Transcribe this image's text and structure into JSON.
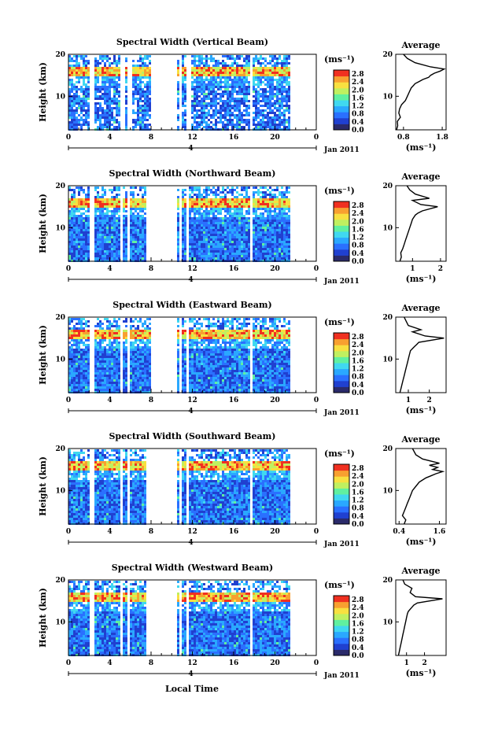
{
  "figure": {
    "xlabel": "Local Time",
    "date_label": "Jan 2011",
    "day_label": "4",
    "ylabel": "Height (km)",
    "avg_title": "Average",
    "unit_label": "(ms⁻¹)"
  },
  "colors": {
    "scale": [
      "#2a2a6a",
      "#2040d0",
      "#2a70ff",
      "#2aa8ff",
      "#40d8f0",
      "#60f0a0",
      "#c0f060",
      "#f8e040",
      "#f8a030",
      "#f03020"
    ],
    "profile": "#000000",
    "frame": "#000000"
  },
  "chart_data": [
    {
      "type": "heatmap",
      "title": "Spectral Width (Vertical Beam)",
      "x_ticks": [
        "0",
        "4",
        "8",
        "12",
        "16",
        "20",
        "0"
      ],
      "y_ticks": [
        "20",
        "10"
      ],
      "xlim": [
        0,
        24
      ],
      "ylim": [
        2,
        20
      ],
      "colorbar_ticks": [
        "2.8",
        "2.4",
        "2.0",
        "1.6",
        "1.2",
        "0.8",
        "0.4",
        "0.0"
      ],
      "data_gaps_hours": [
        [
          2.0,
          2.5
        ],
        [
          5.0,
          5.3
        ],
        [
          5.7,
          6.0
        ],
        [
          8.0,
          10.3
        ],
        [
          10.6,
          10.9
        ],
        [
          11.3,
          11.7
        ],
        [
          17.5,
          17.8
        ]
      ],
      "data_end_hour": 21.3,
      "high_width_layer_km": [
        15,
        17
      ],
      "avg_profile": {
        "xticks": [
          "0.8",
          "1.8"
        ],
        "xlim": [
          0.6,
          1.9
        ],
        "ylim": [
          2,
          20
        ],
        "x": [
          0.62,
          0.65,
          0.64,
          0.72,
          0.68,
          0.7,
          0.75,
          0.85,
          0.9,
          0.95,
          1.0,
          1.05,
          1.1,
          1.2,
          1.3,
          1.45,
          1.5,
          1.6,
          1.75,
          1.85,
          1.5,
          1.1,
          0.9,
          0.8
        ],
        "y": [
          2,
          3,
          4,
          5,
          6,
          7,
          8,
          9,
          10,
          11,
          12,
          12.5,
          13,
          13.5,
          14,
          14.5,
          15,
          15.5,
          16,
          16.5,
          17,
          18,
          19,
          20
        ]
      }
    },
    {
      "type": "heatmap",
      "title": "Spectral Width (Northward Beam)",
      "x_ticks": [
        "0",
        "4",
        "8",
        "12",
        "16",
        "20",
        "0"
      ],
      "y_ticks": [
        "20",
        "10"
      ],
      "xlim": [
        0,
        24
      ],
      "ylim": [
        2,
        20
      ],
      "colorbar_ticks": [
        "2.8",
        "2.4",
        "2.0",
        "1.6",
        "1.2",
        "0.8",
        "0.4",
        "0.0"
      ],
      "data_gaps_hours": [
        [
          2.0,
          2.4
        ],
        [
          5.0,
          5.2
        ],
        [
          5.6,
          5.8
        ],
        [
          7.5,
          10.3
        ],
        [
          10.6,
          10.9
        ],
        [
          11.3,
          11.6
        ],
        [
          17.4,
          17.7
        ]
      ],
      "data_end_hour": 21.3,
      "high_width_layer_km": [
        15,
        17
      ],
      "avg_profile": {
        "xticks": [
          "1",
          "2"
        ],
        "xlim": [
          0.4,
          2.2
        ],
        "ylim": [
          2,
          20
        ],
        "x": [
          0.55,
          0.6,
          0.58,
          0.65,
          0.7,
          0.75,
          0.8,
          0.85,
          0.9,
          0.95,
          1.0,
          1.05,
          1.1,
          1.2,
          1.35,
          1.9,
          1.3,
          1.0,
          1.6,
          1.1,
          0.9,
          0.8
        ],
        "y": [
          2,
          3,
          4,
          5,
          6,
          7,
          8,
          9,
          10,
          11,
          12,
          12.5,
          13,
          13.5,
          14,
          15,
          15.5,
          16.5,
          17,
          18,
          19,
          20
        ]
      }
    },
    {
      "type": "heatmap",
      "title": "Spectral Width (Eastward Beam)",
      "x_ticks": [
        "0",
        "4",
        "8",
        "12",
        "16",
        "20",
        "0"
      ],
      "y_ticks": [
        "20",
        "10"
      ],
      "xlim": [
        0,
        24
      ],
      "ylim": [
        2,
        20
      ],
      "colorbar_ticks": [
        "2.8",
        "2.4",
        "2.0",
        "1.6",
        "1.2",
        "0.8",
        "0.4",
        "0.0"
      ],
      "data_gaps_hours": [
        [
          2.0,
          2.4
        ],
        [
          5.0,
          5.2
        ],
        [
          5.6,
          5.8
        ],
        [
          8.0,
          10.3
        ],
        [
          10.6,
          10.9
        ],
        [
          11.3,
          11.6
        ],
        [
          17.4,
          17.7
        ]
      ],
      "data_end_hour": 21.3,
      "high_width_layer_km": [
        15,
        17
      ],
      "avg_profile": {
        "xticks": [
          "1",
          "2"
        ],
        "xlim": [
          0.4,
          2.8
        ],
        "ylim": [
          2,
          20
        ],
        "x": [
          0.6,
          0.65,
          0.7,
          0.75,
          0.8,
          0.85,
          0.9,
          0.95,
          1.0,
          1.05,
          1.1,
          1.2,
          1.3,
          1.4,
          1.5,
          2.7,
          1.8,
          1.2,
          1.6,
          1.0,
          0.9,
          0.8
        ],
        "y": [
          2,
          3,
          4,
          5,
          6,
          7,
          8,
          9,
          10,
          11,
          12,
          12.5,
          13,
          13.5,
          14,
          15,
          15.5,
          16.5,
          17,
          18,
          19,
          20
        ]
      }
    },
    {
      "type": "heatmap",
      "title": "Spectral Width (Southward Beam)",
      "x_ticks": [
        "0",
        "4",
        "8",
        "12",
        "16",
        "20",
        "0"
      ],
      "y_ticks": [
        "20",
        "10"
      ],
      "xlim": [
        0,
        24
      ],
      "ylim": [
        2,
        20
      ],
      "colorbar_ticks": [
        "2.8",
        "2.4",
        "2.0",
        "1.6",
        "1.2",
        "0.8",
        "0.4",
        "0.0"
      ],
      "data_gaps_hours": [
        [
          2.0,
          2.4
        ],
        [
          5.0,
          5.2
        ],
        [
          5.6,
          5.8
        ],
        [
          7.5,
          10.3
        ],
        [
          10.6,
          10.9
        ],
        [
          11.3,
          11.6
        ],
        [
          17.4,
          17.7
        ]
      ],
      "data_end_hour": 21.3,
      "high_width_layer_km": [
        15,
        17
      ],
      "avg_profile": {
        "xticks": [
          "0.4",
          "1.6"
        ],
        "xlim": [
          0.3,
          1.8
        ],
        "ylim": [
          2,
          20
        ],
        "x": [
          0.55,
          0.6,
          0.5,
          0.55,
          0.6,
          0.65,
          0.7,
          0.75,
          0.8,
          0.9,
          1.0,
          1.1,
          1.2,
          1.35,
          1.5,
          1.7,
          1.4,
          1.55,
          1.3,
          1.6,
          1.1,
          0.9,
          0.8
        ],
        "y": [
          2,
          3,
          4,
          5,
          6,
          7,
          8,
          9,
          10,
          11,
          12,
          12.5,
          13,
          13.5,
          14,
          14.5,
          15,
          15.5,
          16,
          16.5,
          17.5,
          18.5,
          20
        ]
      }
    },
    {
      "type": "heatmap",
      "title": "Spectral Width (Westward Beam)",
      "x_ticks": [
        "0",
        "4",
        "8",
        "12",
        "16",
        "20",
        "0"
      ],
      "y_ticks": [
        "20",
        "10"
      ],
      "xlim": [
        0,
        24
      ],
      "ylim": [
        2,
        20
      ],
      "colorbar_ticks": [
        "2.8",
        "2.4",
        "2.0",
        "1.6",
        "1.2",
        "0.8",
        "0.4",
        "0.0"
      ],
      "data_gaps_hours": [
        [
          2.0,
          2.4
        ],
        [
          5.0,
          5.2
        ],
        [
          5.6,
          5.8
        ],
        [
          7.5,
          10.3
        ],
        [
          10.6,
          10.9
        ],
        [
          11.3,
          11.6
        ],
        [
          17.4,
          17.7
        ]
      ],
      "data_end_hour": 21.3,
      "high_width_layer_km": [
        15,
        17
      ],
      "avg_profile": {
        "xticks": [
          "1",
          "2"
        ],
        "xlim": [
          0.4,
          3.2
        ],
        "ylim": [
          2,
          20
        ],
        "x": [
          0.55,
          0.6,
          0.65,
          0.7,
          0.75,
          0.8,
          0.85,
          0.9,
          0.95,
          1.0,
          1.05,
          1.1,
          1.2,
          1.3,
          1.4,
          1.6,
          3.0,
          1.5,
          1.2,
          1.3,
          0.9,
          0.8
        ],
        "y": [
          2,
          3,
          4,
          5,
          6,
          7,
          8,
          9,
          10,
          11,
          12,
          12.5,
          13,
          13.5,
          14,
          14.5,
          15.5,
          16,
          17,
          18,
          19,
          20
        ]
      }
    }
  ]
}
